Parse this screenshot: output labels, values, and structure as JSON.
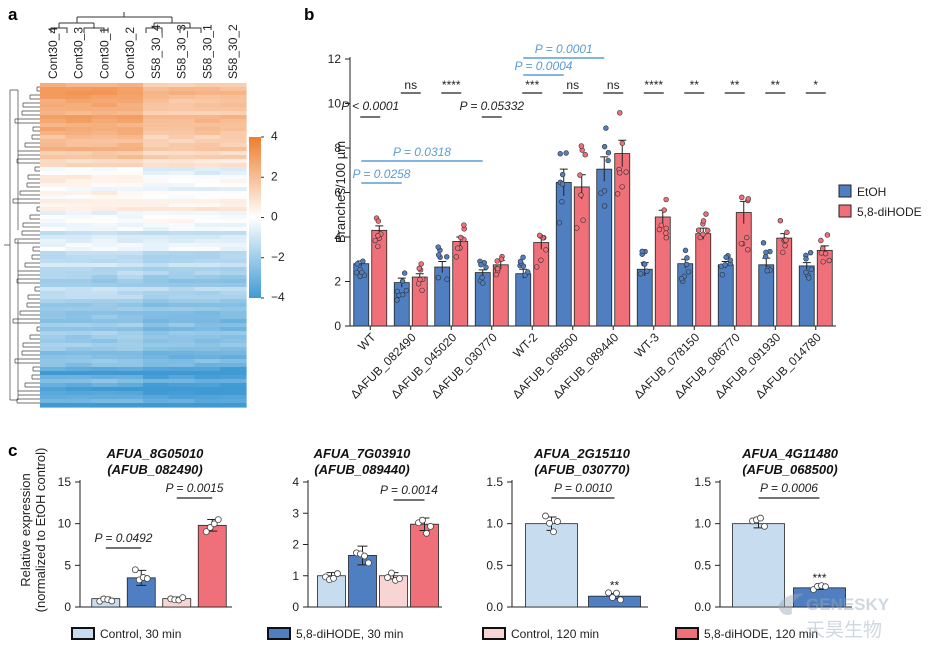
{
  "panel_labels": {
    "a": "a",
    "b": "b",
    "c": "c"
  },
  "colors": {
    "etoh": "#4f7fc1",
    "dihode": "#f0707a",
    "pvalue_blue": "#5b9bd5",
    "ctrl30": "#c8dcf0",
    "dihode30": "#4f7fc1",
    "ctrl120": "#f8d4d4",
    "dihode120": "#f0707a",
    "heat_high": "#ef7d2d",
    "heat_low": "#3f9ad4"
  },
  "chart_data": [
    {
      "panel": "a",
      "type": "heatmap",
      "columns": [
        "Cont30_4",
        "Cont30_3",
        "Cont30_1",
        "Cont30_2",
        "S58_30_4",
        "S58_30_3",
        "S58_30_1",
        "S58_30_2"
      ],
      "colorbar_ticks": [
        "4",
        "2",
        "0",
        "−2",
        "−4"
      ],
      "colorbar_range": [
        -4,
        4
      ]
    },
    {
      "panel": "b",
      "type": "bar",
      "ylabel": "Branches/100 µm",
      "ylim": [
        0,
        12
      ],
      "yticks": [
        0,
        2,
        4,
        6,
        8,
        10,
        12
      ],
      "categories": [
        "WT",
        "ΔAFUB_082490",
        "ΔAFUB_045020",
        "ΔAFUB_030770",
        "WT-2",
        "ΔAFUB_068500",
        "ΔAFUB_089440",
        "WT-3",
        "ΔAFUB_078150",
        "ΔAFUB_086770",
        "ΔAFUB_091930",
        "ΔAFUB_014780"
      ],
      "series": [
        {
          "name": "EtOH",
          "values": [
            2.8,
            1.95,
            2.65,
            2.4,
            2.35,
            6.45,
            7.05,
            2.55,
            2.8,
            2.75,
            2.75,
            2.7
          ],
          "errors": [
            0.12,
            0.2,
            0.25,
            0.12,
            0.2,
            0.6,
            0.55,
            0.3,
            0.2,
            0.15,
            0.3,
            0.15
          ]
        },
        {
          "name": "5,8-diHODE",
          "values": [
            4.3,
            2.2,
            3.8,
            2.75,
            3.75,
            6.25,
            7.75,
            4.9,
            4.15,
            5.1,
            3.95,
            3.4
          ],
          "errors": [
            0.2,
            0.15,
            0.2,
            0.2,
            0.3,
            0.55,
            0.6,
            0.3,
            0.25,
            0.5,
            0.2,
            0.2
          ]
        }
      ],
      "significance": [
        "P < 0.0001",
        "ns",
        "****",
        "P = 0.05332",
        "***",
        "ns",
        "ns",
        "****",
        "**",
        "**",
        "**",
        "*"
      ],
      "comparisons": [
        {
          "label": "P = 0.0258"
        },
        {
          "label": "P = 0.0318"
        },
        {
          "label": "P = 0.0004"
        },
        {
          "label": "P = 0.0001"
        }
      ]
    },
    {
      "panel": "c",
      "type": "bar",
      "ylabel": "Relative expression",
      "ylabel2": "(normalized to EtOH control)",
      "legend": [
        "Control, 30 min",
        "5,8-diHODE, 30 min",
        "Control, 120 min",
        "5,8-diHODE, 120 min"
      ],
      "groups": [
        {
          "title1": "AFUA_8G05010",
          "title2": "(AFUB_082490)",
          "ylim": [
            0,
            15
          ],
          "yticks": [
            0,
            5,
            10,
            15
          ],
          "values": [
            1.0,
            3.5,
            1.0,
            9.8
          ],
          "errors": [
            0.2,
            0.9,
            0.2,
            0.7
          ],
          "p": [
            "P = 0.0492",
            "P = 0.0015"
          ]
        },
        {
          "title1": "AFUA_7G03910",
          "title2": "(AFUB_089440)",
          "ylim": [
            0,
            4
          ],
          "yticks": [
            0,
            1,
            2,
            3,
            4
          ],
          "values": [
            1.0,
            1.65,
            1.0,
            2.65
          ],
          "errors": [
            0.1,
            0.3,
            0.1,
            0.2
          ],
          "p": [
            "P = 0.0014"
          ]
        },
        {
          "title1": "AFUA_2G15110",
          "title2": "(AFUB_030770)",
          "ylim": [
            0,
            1.5
          ],
          "yticks": [
            "0.0",
            "0.5",
            "1.0",
            "1.5"
          ],
          "values": [
            1.0,
            0.13,
            null,
            null
          ],
          "errors": [
            0.08,
            0.03,
            null,
            null
          ],
          "p": [
            "P = 0.0010"
          ],
          "stars": "**"
        },
        {
          "title1": "AFUA_4G11480",
          "title2": "(AFUB_068500)",
          "ylim": [
            0,
            1.5
          ],
          "yticks": [
            "0.0",
            "0.5",
            "1.0",
            "1.5"
          ],
          "values": [
            1.0,
            0.23,
            null,
            null
          ],
          "errors": [
            0.05,
            0.02,
            null,
            null
          ],
          "p": [
            "P = 0.0006"
          ],
          "stars": "***"
        }
      ]
    }
  ],
  "watermark": {
    "line1": "GENESKY",
    "line2": "天昊生物"
  }
}
